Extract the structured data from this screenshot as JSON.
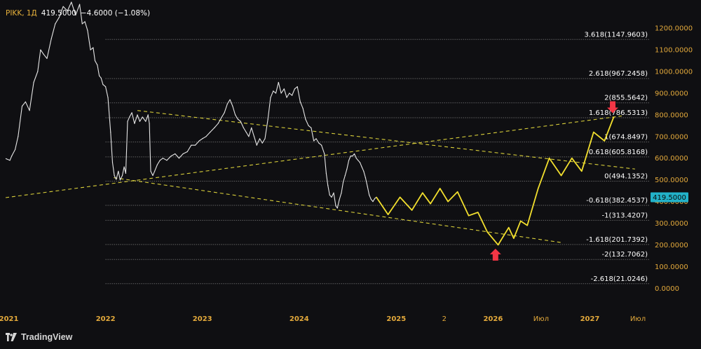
{
  "header": {
    "symbol_interval": "PIKK, 1Д",
    "price": "419.5000",
    "change": "−4.6000 (−1.08%)"
  },
  "brand": {
    "name": "TradingView",
    "logo_icon": "tradingview-logo-icon"
  },
  "colors": {
    "background": "#0f0f12",
    "price_line": "#e6e6e6",
    "projection": "#f2df2e",
    "trendline": "#d9cf3a",
    "fib_line": "#8a8a8a",
    "axis_text": "#e3a93b",
    "arrow": "#f23645",
    "price_tag": "#22b2c9"
  },
  "chart_data": {
    "type": "line",
    "title": "",
    "ylim": [
      -80,
      1330
    ],
    "x_axis": {
      "range": [
        "2020-12-20",
        "2027-08-15"
      ],
      "ticks": [
        {
          "date": "2021-01-01",
          "label": "2021"
        },
        {
          "date": "2022-01-01",
          "label": "2022"
        },
        {
          "date": "2023-01-01",
          "label": "2023"
        },
        {
          "date": "2024-01-01",
          "label": "2024"
        },
        {
          "date": "2025-01-01",
          "label": "2025"
        },
        {
          "date": "2025-07-01",
          "label": "2"
        },
        {
          "date": "2026-01-01",
          "label": "2026"
        },
        {
          "date": "2026-07-01",
          "label": "Июл"
        },
        {
          "date": "2027-01-01",
          "label": "2027"
        },
        {
          "date": "2027-07-01",
          "label": "Июл"
        }
      ]
    },
    "y_axis": {
      "ticks": [
        "0.0000",
        "100.0000",
        "200.0000",
        "300.0000",
        "400.0000",
        "500.0000",
        "600.0000",
        "700.0000",
        "800.0000",
        "900.0000",
        "1000.0000",
        "1100.0000",
        "1200.0000"
      ]
    },
    "current_price": {
      "label": "419.5000",
      "value": 419.5
    },
    "fib_levels": [
      {
        "label": "3.618(1147.9603)",
        "value": 1147.9603
      },
      {
        "label": "2.618(967.2458)",
        "value": 967.2458
      },
      {
        "label": "2(855.5642)",
        "value": 855.5642
      },
      {
        "label": "1.618(786.5313)",
        "value": 786.5313
      },
      {
        "label": "1(674.8497)",
        "value": 674.8497
      },
      {
        "label": "0.618(605.8168)",
        "value": 605.8168
      },
      {
        "label": "0(494.1352)",
        "value": 494.1352
      },
      {
        "label": "-0.618(382.4537)",
        "value": 382.4537
      },
      {
        "label": "-1(313.4207)",
        "value": 313.4207
      },
      {
        "label": "-1.618(201.7392)",
        "value": 201.7392
      },
      {
        "label": "-2(132.7062)",
        "value": 132.7062
      },
      {
        "label": "-2.618(21.0246)",
        "value": 21.0246
      }
    ],
    "fib_range": {
      "from": "2022-01-01",
      "to": "2027-08-15"
    },
    "series": [
      {
        "style": "price",
        "points": [
          [
            "2020-12-20",
            598
          ],
          [
            "2021-01-05",
            590
          ],
          [
            "2021-01-12",
            610
          ],
          [
            "2021-01-25",
            640
          ],
          [
            "2021-02-05",
            700
          ],
          [
            "2021-02-20",
            840
          ],
          [
            "2021-03-05",
            860
          ],
          [
            "2021-03-20",
            820
          ],
          [
            "2021-04-05",
            950
          ],
          [
            "2021-04-20",
            1000
          ],
          [
            "2021-05-01",
            1100
          ],
          [
            "2021-05-12",
            1080
          ],
          [
            "2021-05-25",
            1060
          ],
          [
            "2021-06-10",
            1150
          ],
          [
            "2021-06-25",
            1220
          ],
          [
            "2021-07-10",
            1250
          ],
          [
            "2021-07-25",
            1300
          ],
          [
            "2021-08-10",
            1280
          ],
          [
            "2021-08-25",
            1320
          ],
          [
            "2021-09-10",
            1260
          ],
          [
            "2021-09-25",
            1310
          ],
          [
            "2021-10-05",
            1220
          ],
          [
            "2021-10-15",
            1230
          ],
          [
            "2021-10-25",
            1190
          ],
          [
            "2021-11-05",
            1100
          ],
          [
            "2021-11-15",
            1110
          ],
          [
            "2021-11-22",
            1050
          ],
          [
            "2021-12-01",
            1030
          ],
          [
            "2021-12-08",
            980
          ],
          [
            "2021-12-15",
            970
          ],
          [
            "2021-12-22",
            940
          ],
          [
            "2022-01-01",
            930
          ],
          [
            "2022-01-10",
            880
          ],
          [
            "2022-01-20",
            720
          ],
          [
            "2022-01-27",
            580
          ],
          [
            "2022-02-03",
            520
          ],
          [
            "2022-02-10",
            502
          ],
          [
            "2022-02-18",
            540
          ],
          [
            "2022-02-25",
            500
          ],
          [
            "2022-03-05",
            520
          ],
          [
            "2022-03-12",
            560
          ],
          [
            "2022-03-18",
            530
          ],
          [
            "2022-03-25",
            770
          ],
          [
            "2022-04-01",
            790
          ],
          [
            "2022-04-10",
            810
          ],
          [
            "2022-04-20",
            760
          ],
          [
            "2022-05-01",
            800
          ],
          [
            "2022-05-10",
            770
          ],
          [
            "2022-05-20",
            790
          ],
          [
            "2022-06-01",
            770
          ],
          [
            "2022-06-10",
            800
          ],
          [
            "2022-06-15",
            760
          ],
          [
            "2022-06-20",
            540
          ],
          [
            "2022-06-28",
            520
          ],
          [
            "2022-07-05",
            540
          ],
          [
            "2022-07-15",
            570
          ],
          [
            "2022-07-25",
            590
          ],
          [
            "2022-08-05",
            600
          ],
          [
            "2022-08-20",
            590
          ],
          [
            "2022-09-05",
            610
          ],
          [
            "2022-09-20",
            620
          ],
          [
            "2022-10-05",
            600
          ],
          [
            "2022-10-20",
            620
          ],
          [
            "2022-11-05",
            630
          ],
          [
            "2022-11-20",
            660
          ],
          [
            "2022-12-05",
            660
          ],
          [
            "2022-12-20",
            680
          ],
          [
            "2023-01-01",
            690
          ],
          [
            "2023-01-15",
            700
          ],
          [
            "2023-01-30",
            720
          ],
          [
            "2023-02-15",
            740
          ],
          [
            "2023-03-01",
            760
          ],
          [
            "2023-03-15",
            790
          ],
          [
            "2023-03-25",
            810
          ],
          [
            "2023-04-05",
            850
          ],
          [
            "2023-04-15",
            870
          ],
          [
            "2023-04-25",
            840
          ],
          [
            "2023-05-05",
            800
          ],
          [
            "2023-05-15",
            780
          ],
          [
            "2023-05-25",
            770
          ],
          [
            "2023-06-05",
            740
          ],
          [
            "2023-06-15",
            720
          ],
          [
            "2023-06-25",
            700
          ],
          [
            "2023-07-05",
            740
          ],
          [
            "2023-07-15",
            700
          ],
          [
            "2023-07-25",
            660
          ],
          [
            "2023-08-05",
            690
          ],
          [
            "2023-08-15",
            670
          ],
          [
            "2023-08-25",
            690
          ],
          [
            "2023-09-05",
            780
          ],
          [
            "2023-09-15",
            880
          ],
          [
            "2023-09-25",
            910
          ],
          [
            "2023-10-05",
            900
          ],
          [
            "2023-10-15",
            950
          ],
          [
            "2023-10-25",
            900
          ],
          [
            "2023-11-05",
            920
          ],
          [
            "2023-11-15",
            880
          ],
          [
            "2023-11-25",
            900
          ],
          [
            "2023-12-05",
            890
          ],
          [
            "2023-12-15",
            920
          ],
          [
            "2023-12-25",
            930
          ],
          [
            "2024-01-05",
            860
          ],
          [
            "2024-01-15",
            830
          ],
          [
            "2024-01-25",
            780
          ],
          [
            "2024-02-05",
            750
          ],
          [
            "2024-02-15",
            740
          ],
          [
            "2024-02-25",
            680
          ],
          [
            "2024-03-05",
            690
          ],
          [
            "2024-03-15",
            670
          ],
          [
            "2024-03-25",
            660
          ],
          [
            "2024-04-05",
            620
          ],
          [
            "2024-04-12",
            530
          ],
          [
            "2024-04-18",
            475
          ],
          [
            "2024-04-25",
            430
          ],
          [
            "2024-05-02",
            420
          ],
          [
            "2024-05-10",
            440
          ],
          [
            "2024-05-18",
            380
          ],
          [
            "2024-05-24",
            370
          ],
          [
            "2024-05-31",
            408
          ],
          [
            "2024-06-08",
            440
          ],
          [
            "2024-06-15",
            490
          ],
          [
            "2024-06-22",
            520
          ],
          [
            "2024-06-29",
            550
          ],
          [
            "2024-07-06",
            590
          ],
          [
            "2024-07-13",
            610
          ],
          [
            "2024-07-20",
            610
          ],
          [
            "2024-07-27",
            620
          ],
          [
            "2024-08-03",
            600
          ],
          [
            "2024-08-10",
            590
          ],
          [
            "2024-08-17",
            580
          ],
          [
            "2024-08-24",
            560
          ],
          [
            "2024-08-31",
            540
          ],
          [
            "2024-09-07",
            510
          ],
          [
            "2024-09-14",
            470
          ],
          [
            "2024-09-21",
            430
          ],
          [
            "2024-09-28",
            410
          ],
          [
            "2024-10-05",
            400
          ],
          [
            "2024-10-12",
            414
          ],
          [
            "2024-10-18",
            420
          ]
        ]
      },
      {
        "style": "projection",
        "points": [
          [
            "2024-10-18",
            420
          ],
          [
            "2024-12-01",
            340
          ],
          [
            "2025-01-15",
            420
          ],
          [
            "2025-03-01",
            360
          ],
          [
            "2025-04-10",
            440
          ],
          [
            "2025-05-10",
            390
          ],
          [
            "2025-06-15",
            460
          ],
          [
            "2025-07-15",
            400
          ],
          [
            "2025-08-20",
            445
          ],
          [
            "2025-10-01",
            335
          ],
          [
            "2025-11-05",
            350
          ],
          [
            "2025-12-10",
            260
          ],
          [
            "2026-01-20",
            200
          ],
          [
            "2026-03-01",
            280
          ],
          [
            "2026-03-20",
            230
          ],
          [
            "2026-04-15",
            310
          ],
          [
            "2026-05-10",
            290
          ],
          [
            "2026-06-20",
            460
          ],
          [
            "2026-08-01",
            600
          ],
          [
            "2026-09-15",
            520
          ],
          [
            "2026-10-25",
            600
          ],
          [
            "2026-12-01",
            540
          ],
          [
            "2027-01-15",
            720
          ],
          [
            "2027-02-25",
            680
          ],
          [
            "2027-04-01",
            790
          ]
        ]
      }
    ],
    "trendlines": [
      {
        "from": [
          "2020-12-20",
          418
        ],
        "to": [
          "2027-05-01",
          795
        ]
      },
      {
        "from": [
          "2022-05-01",
          820
        ],
        "to": [
          "2027-06-20",
          550
        ]
      },
      {
        "from": [
          "2022-02-01",
          510
        ],
        "to": [
          "2026-09-20",
          210
        ]
      }
    ],
    "arrows": [
      {
        "direction": "up",
        "date": "2026-01-10",
        "value": 150
      },
      {
        "direction": "down",
        "date": "2027-03-28",
        "value": 840
      }
    ]
  }
}
